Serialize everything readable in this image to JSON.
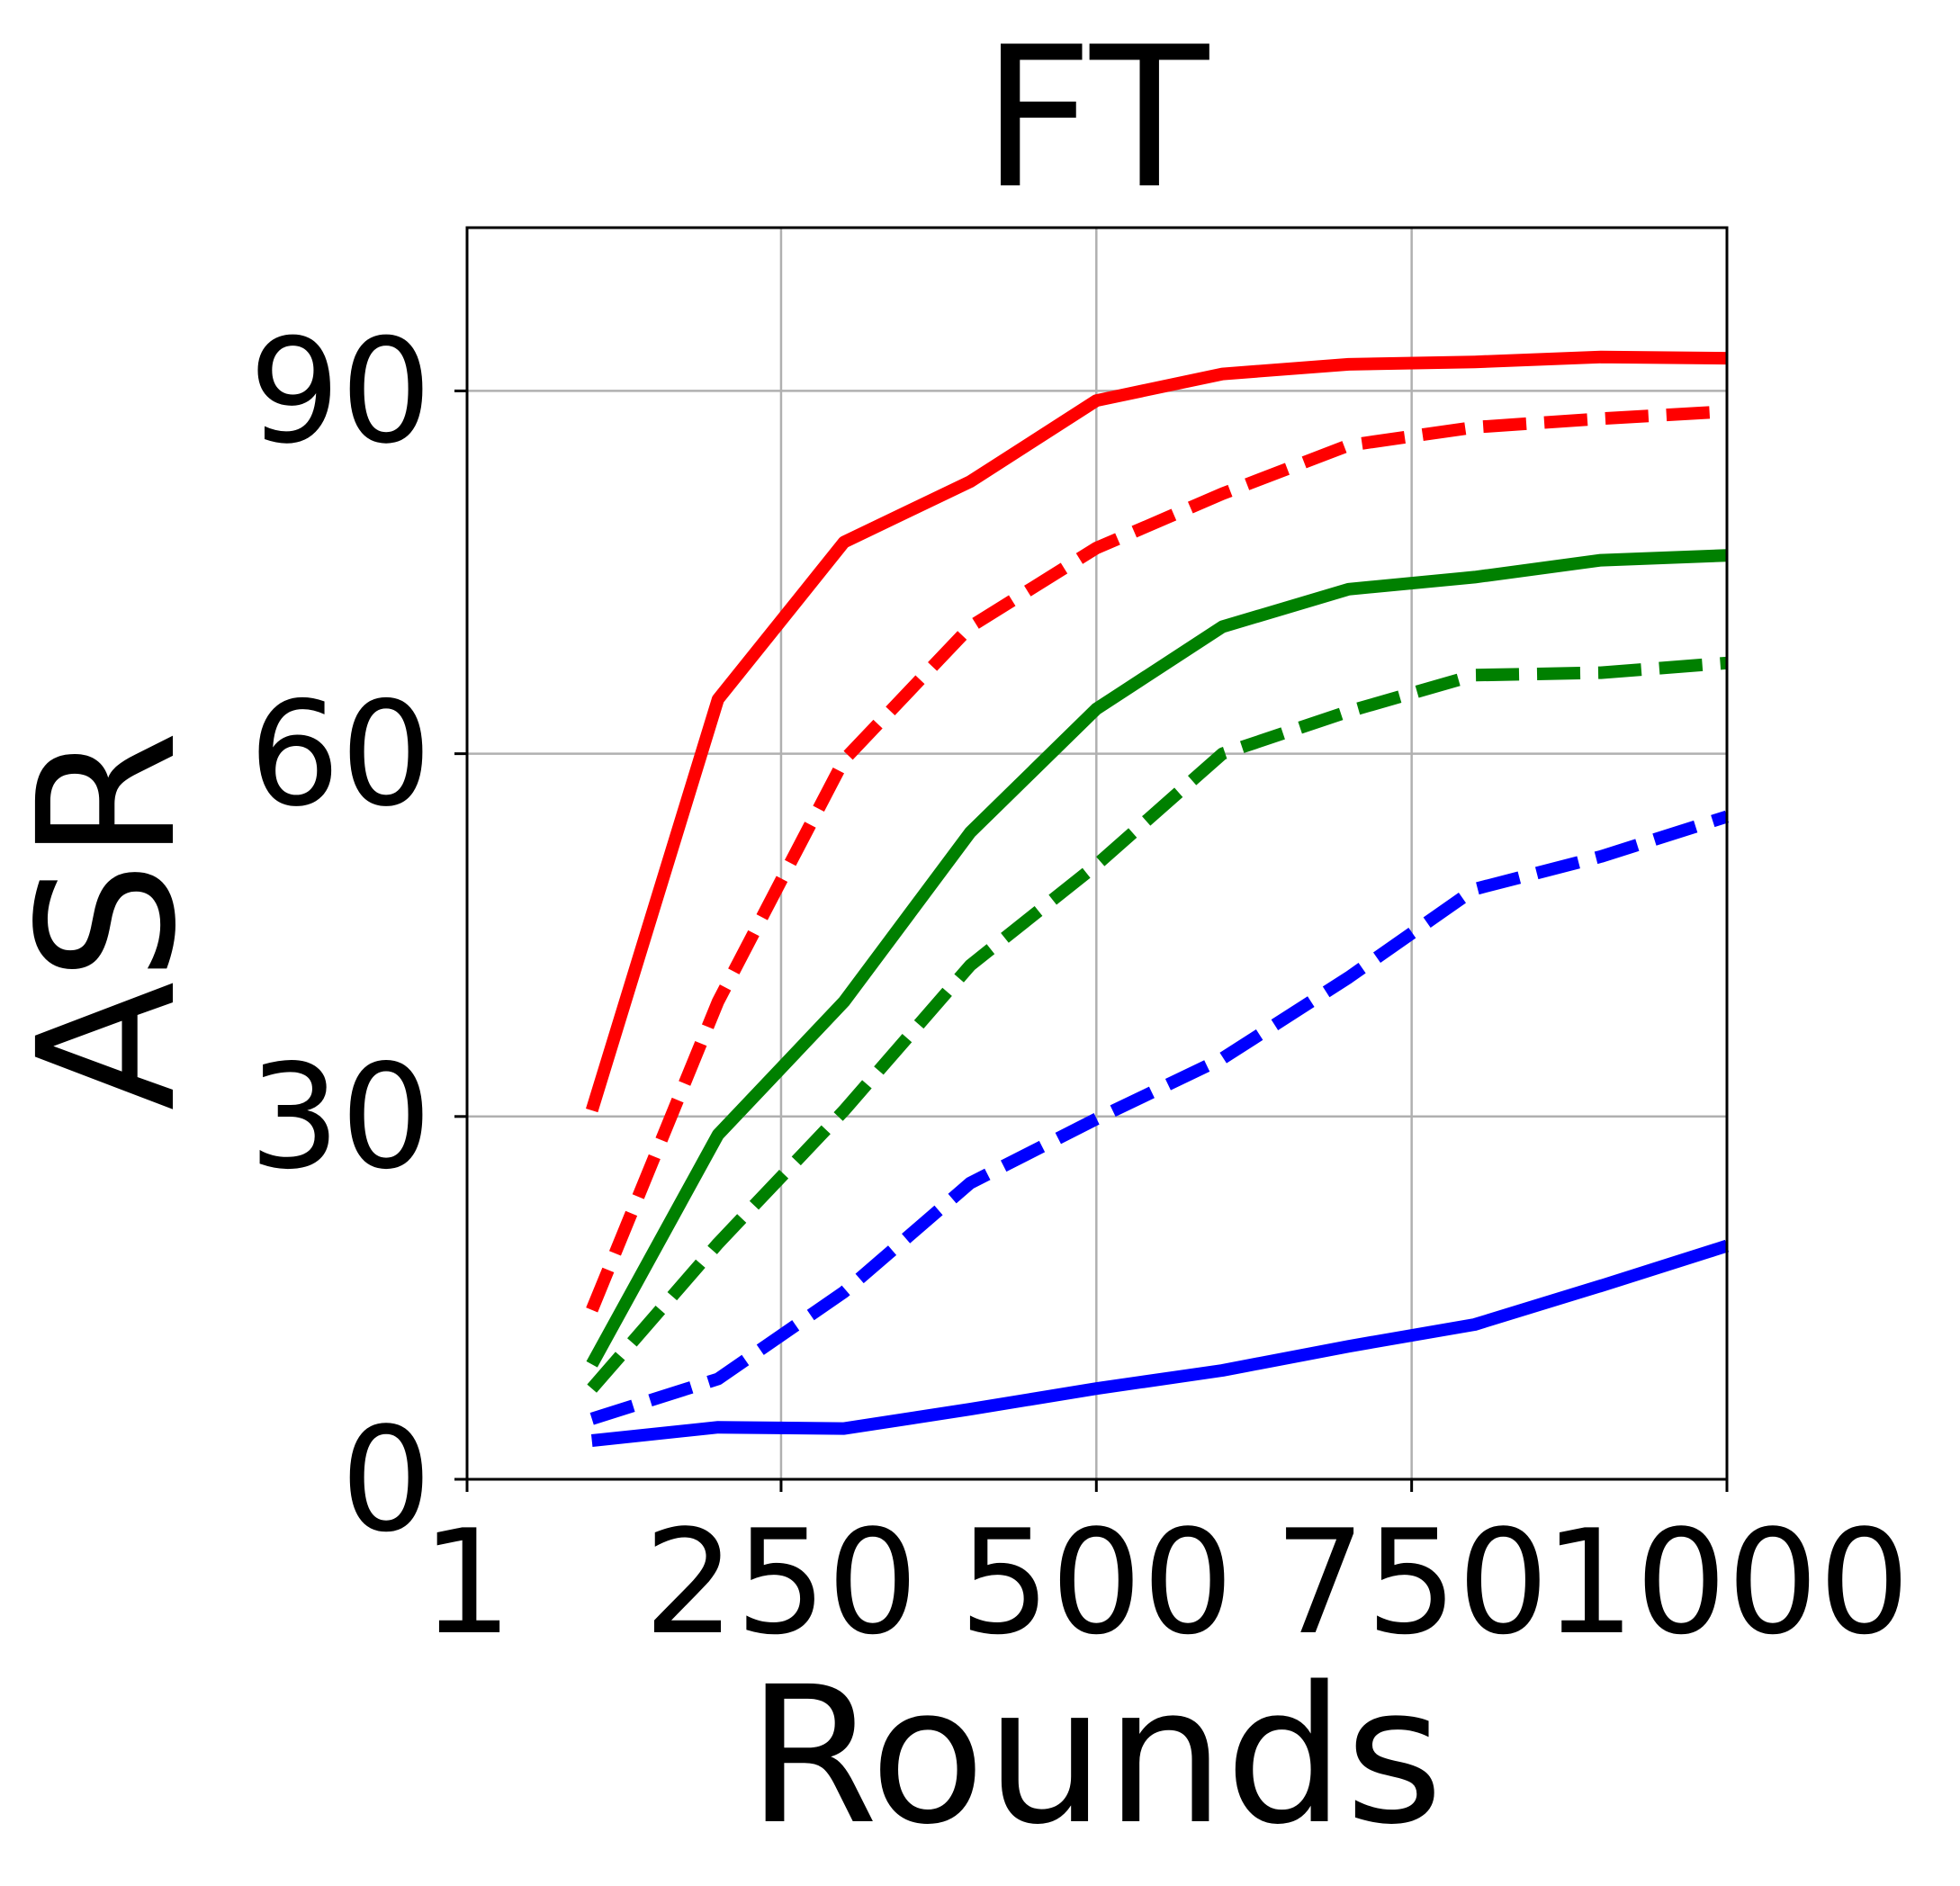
{
  "chart_data": {
    "type": "line",
    "title": "FT",
    "xlabel": "Rounds",
    "ylabel": "ASR",
    "xlim": [
      1,
      1000
    ],
    "ylim": [
      0,
      103.5
    ],
    "xticks": [
      1,
      250,
      500,
      750,
      1000
    ],
    "xtick_labels": [
      "1",
      "250",
      "500",
      "750",
      "1000"
    ],
    "yticks": [
      0,
      30,
      60,
      90
    ],
    "ytick_labels": [
      "0",
      "30",
      "60",
      "90"
    ],
    "grid": true,
    "legend": "none",
    "x": [
      100,
      200,
      300,
      400,
      500,
      600,
      700,
      800,
      900,
      1000
    ],
    "series": [
      {
        "color": "#ff0000",
        "style": "solid",
        "values": [
          30.5,
          64.5,
          77.5,
          82.5,
          89.2,
          91.4,
          92.2,
          92.4,
          92.8,
          92.7
        ]
      },
      {
        "color": "#ff0000",
        "style": "dashed",
        "values": [
          14.0,
          39.5,
          59.5,
          70.5,
          77.0,
          81.5,
          85.5,
          87.0,
          87.7,
          88.3
        ]
      },
      {
        "color": "#008000",
        "style": "solid",
        "values": [
          9.5,
          28.5,
          39.5,
          53.5,
          63.7,
          70.5,
          73.6,
          74.6,
          76.0,
          76.4
        ]
      },
      {
        "color": "#008000",
        "style": "dashed",
        "values": [
          7.5,
          19.5,
          30.5,
          42.5,
          50.8,
          60.0,
          63.5,
          66.5,
          66.7,
          67.5
        ]
      },
      {
        "color": "#0000ff",
        "style": "dashed",
        "values": [
          5.0,
          8.3,
          15.5,
          24.5,
          29.8,
          34.8,
          41.5,
          48.8,
          51.5,
          54.8
        ]
      },
      {
        "color": "#0000ff",
        "style": "solid",
        "values": [
          3.2,
          4.3,
          4.2,
          5.8,
          7.5,
          9.0,
          11.0,
          12.8,
          16.0,
          19.3
        ]
      }
    ]
  }
}
